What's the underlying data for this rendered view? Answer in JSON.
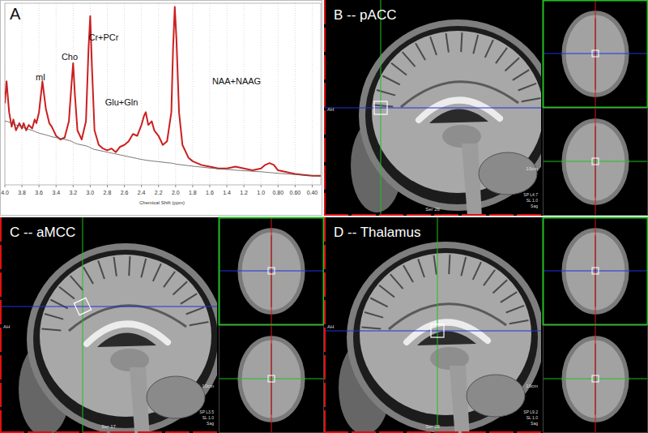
{
  "chart_data": {
    "type": "line",
    "title": "A",
    "x_label": "Chemical Shift (ppm)",
    "annotations": [
      "mI",
      "Cho",
      "Cr+PCr",
      "Glu+Gln",
      "NAA+NAAG"
    ],
    "x": [
      4.0,
      3.98,
      3.95,
      3.92,
      3.9,
      3.87,
      3.83,
      3.8,
      3.78,
      3.75,
      3.72,
      3.68,
      3.65,
      3.63,
      3.6,
      3.56,
      3.52,
      3.48,
      3.45,
      3.4,
      3.35,
      3.3,
      3.25,
      3.22,
      3.2,
      3.18,
      3.15,
      3.1,
      3.05,
      3.02,
      3.0,
      2.98,
      2.95,
      2.9,
      2.85,
      2.8,
      2.75,
      2.7,
      2.65,
      2.6,
      2.55,
      2.5,
      2.45,
      2.4,
      2.37,
      2.35,
      2.32,
      2.28,
      2.25,
      2.2,
      2.15,
      2.1,
      2.05,
      2.03,
      2.01,
      1.99,
      1.96,
      1.92,
      1.85,
      1.8,
      1.7,
      1.6,
      1.5,
      1.4,
      1.3,
      1.2,
      1.1,
      1.0,
      0.95,
      0.9,
      0.85,
      0.8,
      0.7,
      0.6,
      0.5,
      0.4,
      0.3
    ],
    "series": [
      {
        "color": "#cc1f1f",
        "values": [
          45,
          57,
          40,
          32,
          36,
          30,
          34,
          31,
          34,
          30,
          33,
          31,
          36,
          34,
          40,
          57,
          42,
          34,
          32,
          27,
          25,
          26,
          35,
          55,
          67,
          50,
          30,
          25,
          35,
          75,
          93,
          65,
          30,
          22,
          20,
          19,
          20,
          18,
          21,
          22,
          24,
          28,
          27,
          33,
          38,
          40,
          33,
          35,
          30,
          27,
          22,
          24,
          40,
          75,
          98,
          80,
          40,
          22,
          15,
          13,
          11,
          10,
          9,
          9,
          10,
          9,
          8,
          9,
          11,
          12,
          11,
          8,
          7,
          6,
          5.5,
          5,
          5
        ]
      },
      {
        "color": "#555555",
        "values": [
          35,
          35,
          34.5,
          34,
          33.5,
          33,
          32.5,
          32,
          31.5,
          31,
          30.5,
          30,
          29.5,
          29,
          28.5,
          28,
          27.5,
          27,
          26.5,
          26,
          25.5,
          25,
          24.5,
          24,
          23.5,
          23,
          22.5,
          22,
          21.5,
          21,
          20.5,
          20,
          19.5,
          19,
          18.5,
          18,
          17.5,
          17,
          16.5,
          16,
          15.5,
          15,
          14.5,
          14,
          13.8,
          13.6,
          13.4,
          13.2,
          13,
          12.8,
          12.5,
          12.2,
          12,
          11.8,
          11.6,
          11.4,
          11.2,
          11,
          10.6,
          10.3,
          9.8,
          9.3,
          8.9,
          8.5,
          8.1,
          7.8,
          7.5,
          7.2,
          7,
          6.8,
          6.6,
          6.4,
          6,
          5.7,
          5.4,
          5.1,
          4.8
        ]
      }
    ],
    "xlim": [
      4.0,
      0.3
    ],
    "ylim": [
      0,
      100
    ],
    "xticks": [
      {
        "value": 4.0,
        "label": "4.0"
      },
      {
        "value": 3.8,
        "label": "3.8"
      },
      {
        "value": 3.6,
        "label": "3.6"
      },
      {
        "value": 3.4,
        "label": "3.4"
      },
      {
        "value": 3.2,
        "label": "3.2"
      },
      {
        "value": 3.0,
        "label": "3.0"
      },
      {
        "value": 2.8,
        "label": "2.8"
      },
      {
        "value": 2.6,
        "label": "2.6"
      },
      {
        "value": 2.4,
        "label": "2.4"
      },
      {
        "value": 2.2,
        "label": "2.2"
      },
      {
        "value": 2.0,
        "label": "2.0"
      },
      {
        "value": 1.8,
        "label": "1.8"
      },
      {
        "value": 1.6,
        "label": "1.6"
      },
      {
        "value": 1.4,
        "label": "1.4"
      },
      {
        "value": 1.2,
        "label": "1.2"
      },
      {
        "value": 1.0,
        "label": "1.0"
      },
      {
        "value": 0.8,
        "label": "0.80"
      },
      {
        "value": 0.6,
        "label": "0.60"
      },
      {
        "value": 0.4,
        "label": "0.40"
      }
    ],
    "grid": true,
    "tick_labels": "x"
  },
  "panels": [
    {
      "title": "B -- pACC",
      "orientation_label": "AH",
      "series_label": "Ser 26",
      "scale_label": "10cm",
      "position_label": "SP L4.7",
      "slice_label": "SL 1.0",
      "view_label": "Sag"
    },
    {
      "title": "C -- aMCC",
      "orientation_label": "AH",
      "series_label": "Ser 17",
      "scale_label": "10cm",
      "position_label": "SP L3.5",
      "slice_label": "SL 1.0",
      "view_label": "Sag"
    },
    {
      "title": "D -- Thalamus",
      "orientation_label": "AH",
      "series_label": "Ser 28",
      "scale_label": "10cm",
      "position_label": "SP L9.2",
      "slice_label": "SL 1.0",
      "view_label": "Sag"
    }
  ]
}
